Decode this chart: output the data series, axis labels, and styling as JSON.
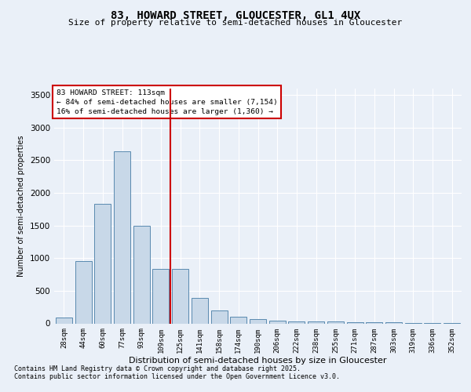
{
  "title": "83, HOWARD STREET, GLOUCESTER, GL1 4UX",
  "subtitle": "Size of property relative to semi-detached houses in Gloucester",
  "xlabel": "Distribution of semi-detached houses by size in Gloucester",
  "ylabel": "Number of semi-detached properties",
  "categories": [
    "28sqm",
    "44sqm",
    "60sqm",
    "77sqm",
    "93sqm",
    "109sqm",
    "125sqm",
    "141sqm",
    "158sqm",
    "174sqm",
    "190sqm",
    "206sqm",
    "222sqm",
    "238sqm",
    "255sqm",
    "271sqm",
    "287sqm",
    "303sqm",
    "319sqm",
    "336sqm",
    "352sqm"
  ],
  "values": [
    95,
    960,
    1830,
    2630,
    1490,
    830,
    830,
    390,
    195,
    105,
    65,
    40,
    30,
    25,
    25,
    20,
    20,
    15,
    10,
    5,
    5
  ],
  "bar_color": "#c8d8e8",
  "bar_edge_color": "#5a8ab0",
  "vline_color": "#cc0000",
  "vline_pos": 5.5,
  "annotation_title": "83 HOWARD STREET: 113sqm",
  "annotation_line1": "← 84% of semi-detached houses are smaller (7,154)",
  "annotation_line2": "16% of semi-detached houses are larger (1,360) →",
  "annotation_box_color": "#cc0000",
  "ylim": [
    0,
    3600
  ],
  "yticks": [
    0,
    500,
    1000,
    1500,
    2000,
    2500,
    3000,
    3500
  ],
  "footnote1": "Contains HM Land Registry data © Crown copyright and database right 2025.",
  "footnote2": "Contains public sector information licensed under the Open Government Licence v3.0.",
  "bg_color": "#eaf0f8",
  "plot_bg_color": "#eaf0f8",
  "grid_color": "#ffffff"
}
